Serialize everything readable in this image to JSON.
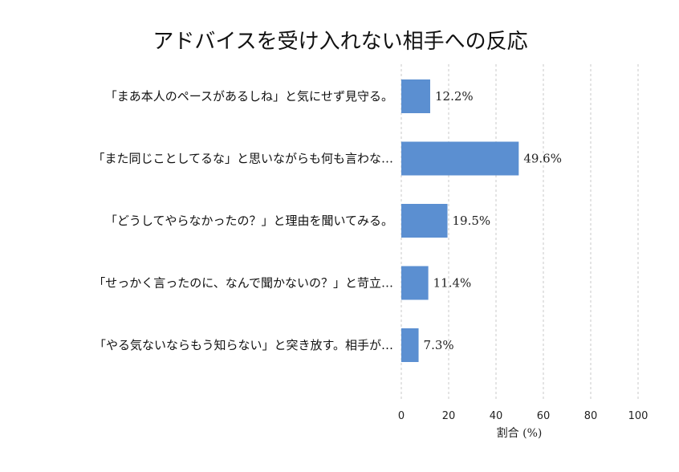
{
  "chart_data": {
    "type": "bar",
    "orientation": "horizontal",
    "title": "アドバイスを受け入れない相手への反応",
    "xlabel": "割合 (%)",
    "ylabel": "",
    "xlim": [
      0,
      100
    ],
    "xticks": [
      "0",
      "20",
      "40",
      "60",
      "80",
      "100"
    ],
    "grid": "x-dashed",
    "bar_color": "#5b8fd1",
    "categories": [
      "「まあ本人のペースがあるしね」と気にせず見守る。",
      "「また同じことしてるな」と思いながらも何も言わな…",
      "「どうしてやらなかったの？」と理由を聞いてみる。",
      "「せっかく言ったのに、なんで聞かないの？」と苛立…",
      "「やる気ないならもう知らない」と突き放す。相手が…"
    ],
    "values": [
      12.2,
      49.6,
      19.5,
      11.4,
      7.3
    ],
    "value_labels": [
      "12.2%",
      "49.6%",
      "19.5%",
      "11.4%",
      "7.3%"
    ]
  }
}
